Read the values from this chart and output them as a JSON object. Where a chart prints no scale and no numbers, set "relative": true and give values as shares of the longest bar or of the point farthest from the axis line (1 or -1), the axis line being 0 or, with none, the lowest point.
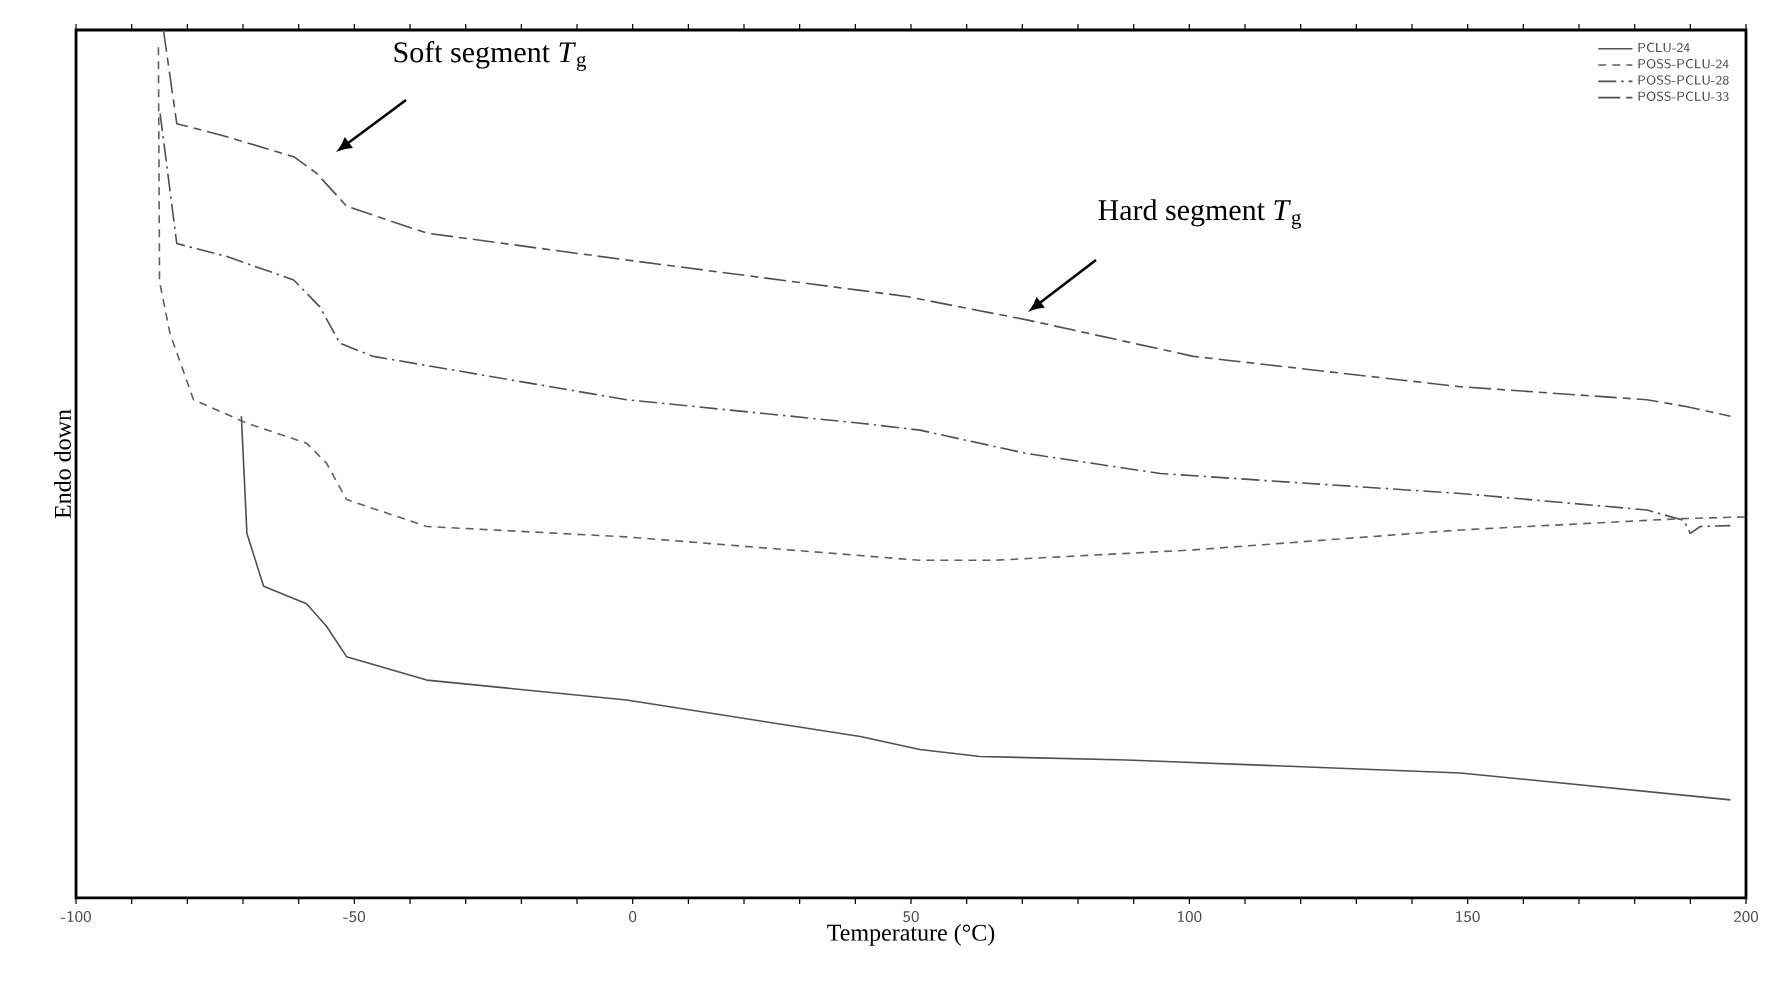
{
  "chart_data": {
    "type": "line",
    "relative": true,
    "xlabel": "Temperature (°C)",
    "ylabel": "Endo down",
    "xlim": [
      -100,
      200
    ],
    "xticks": [
      -100,
      -50,
      0,
      50,
      100,
      150,
      200
    ],
    "grid": false,
    "legend": "top right",
    "marker": "none",
    "annotations": [
      "Soft segment *T*$_{g}$",
      "Hard segment *T*$_{g}$"
    ],
    "series": [
      {
        "name": "PCLU-24",
        "color": "#505050",
        "line_style": "solid",
        "x": [
          -70.3,
          -69.3,
          -66.3,
          -58.6,
          -55.0,
          -51.4,
          -37.0,
          -1.1,
          40.9,
          51.6,
          62.4,
          88.8,
          148.7,
          197.2
        ],
        "values": [
          0.555,
          0.42,
          0.359,
          0.339,
          0.313,
          0.278,
          0.251,
          0.228,
          0.186,
          0.171,
          0.163,
          0.159,
          0.144,
          0.113
        ]
      },
      {
        "name": "POSS-PCLU-24",
        "color": "#606060",
        "line_style": "dashed",
        "x": [
          -85.2,
          -85.0,
          -83.1,
          -78.9,
          -69.3,
          -58.6,
          -55.0,
          -51.4,
          -37.0,
          -1.1,
          51.6,
          64.8,
          100.7,
          148.7,
          188.2,
          200
        ],
        "values": [
          0.98,
          0.71,
          0.65,
          0.574,
          0.547,
          0.524,
          0.501,
          0.459,
          0.428,
          0.416,
          0.389,
          0.389,
          0.401,
          0.424,
          0.437,
          0.439
        ]
      },
      {
        "name": "POSS-PCLU-28",
        "color": "#505050",
        "line_style": "dashdot",
        "x": [
          -84.9,
          -81.9,
          -72.9,
          -60.9,
          -56.2,
          -52.6,
          -46.6,
          -1.1,
          40.9,
          51.6,
          70.8,
          94.8,
          148.7,
          182.2,
          188.8,
          190.0,
          191.8,
          197.2
        ],
        "values": [
          0.904,
          0.754,
          0.739,
          0.712,
          0.681,
          0.639,
          0.624,
          0.574,
          0.547,
          0.539,
          0.512,
          0.489,
          0.466,
          0.447,
          0.435,
          0.42,
          0.428,
          0.429
        ]
      },
      {
        "name": "POSS-PCLU-33",
        "color": "#505050",
        "line_style": "longdashdot",
        "x": [
          -84.3,
          -81.9,
          -72.9,
          -60.9,
          -56.8,
          -51.4,
          -37.0,
          -1.1,
          40.9,
          49.2,
          70.8,
          100.7,
          148.7,
          182.2,
          189.4,
          197.2
        ],
        "values": [
          1.0,
          0.892,
          0.877,
          0.854,
          0.835,
          0.797,
          0.766,
          0.735,
          0.7,
          0.693,
          0.666,
          0.624,
          0.589,
          0.574,
          0.566,
          0.555
        ]
      }
    ]
  }
}
